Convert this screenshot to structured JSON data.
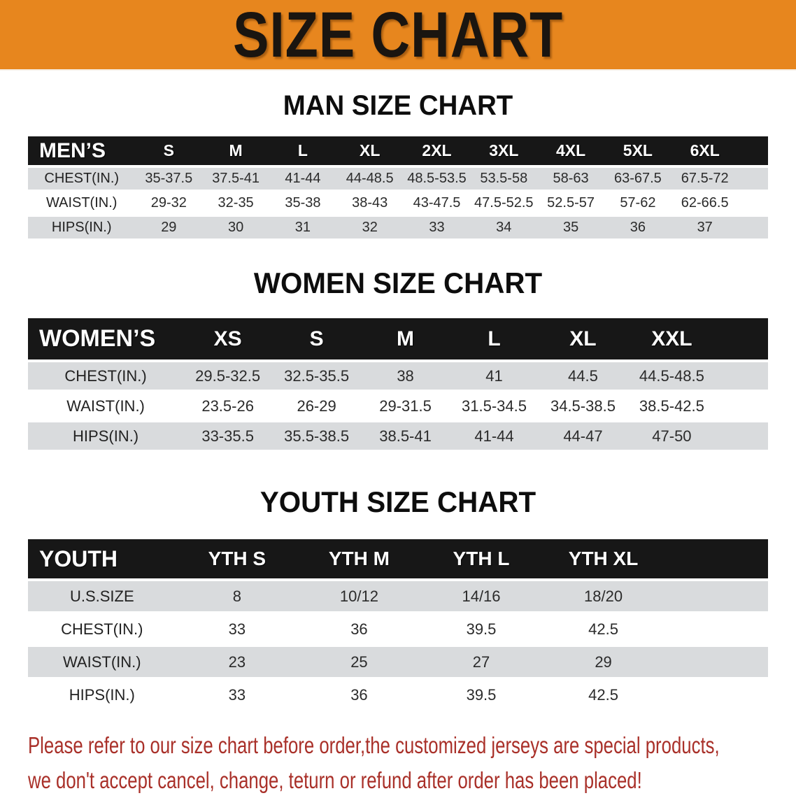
{
  "banner": {
    "title": "SIZE CHART"
  },
  "sections": [
    {
      "heading": "MAN SIZE CHART",
      "table": {
        "header_label": "MEN’S",
        "columns": [
          "S",
          "M",
          "L",
          "XL",
          "2XL",
          "3XL",
          "4XL",
          "5XL",
          "6XL"
        ],
        "rows": [
          {
            "label": "CHEST(IN.)",
            "values": [
              "35-37.5",
              "37.5-41",
              "41-44",
              "44-48.5",
              "48.5-53.5",
              "53.5-58",
              "58-63",
              "63-67.5",
              "67.5-72"
            ]
          },
          {
            "label": "WAIST(IN.)",
            "values": [
              "29-32",
              "32-35",
              "35-38",
              "38-43",
              "43-47.5",
              "47.5-52.5",
              "52.5-57",
              "57-62",
              "62-66.5"
            ]
          },
          {
            "label": "HIPS(IN.)",
            "values": [
              "29",
              "30",
              "31",
              "32",
              "33",
              "34",
              "35",
              "36",
              "37"
            ]
          }
        ]
      }
    },
    {
      "heading": "WOMEN SIZE CHART",
      "table": {
        "header_label": "WOMEN’S",
        "columns": [
          "XS",
          "S",
          "M",
          "L",
          "XL",
          "XXL"
        ],
        "rows": [
          {
            "label": "CHEST(IN.)",
            "values": [
              "29.5-32.5",
              "32.5-35.5",
              "38",
              "41",
              "44.5",
              "44.5-48.5"
            ]
          },
          {
            "label": "WAIST(IN.)",
            "values": [
              "23.5-26",
              "26-29",
              "29-31.5",
              "31.5-34.5",
              "34.5-38.5",
              "38.5-42.5"
            ]
          },
          {
            "label": "HIPS(IN.)",
            "values": [
              "33-35.5",
              "35.5-38.5",
              "38.5-41",
              "41-44",
              "44-47",
              "47-50"
            ]
          }
        ]
      }
    },
    {
      "heading": "YOUTH SIZE CHART",
      "table": {
        "header_label": "YOUTH",
        "columns": [
          "YTH S",
          "YTH M",
          "YTH L",
          "YTH XL"
        ],
        "rows": [
          {
            "label": "U.S.SIZE",
            "values": [
              "8",
              "10/12",
              "14/16",
              "18/20"
            ]
          },
          {
            "label": "CHEST(IN.)",
            "values": [
              "33",
              "36",
              "39.5",
              "42.5"
            ]
          },
          {
            "label": "WAIST(IN.)",
            "values": [
              "23",
              "25",
              "27",
              "29"
            ]
          },
          {
            "label": "HIPS(IN.)",
            "values": [
              "33",
              "36",
              "39.5",
              "42.5"
            ]
          }
        ]
      }
    }
  ],
  "disclaimer": {
    "lines": [
      "Please refer to our size chart before order,the customized jerseys are special products,",
      "we don't accept cancel, change, teturn or refund after order has been placed!"
    ]
  },
  "colors": {
    "banner_bg": "#e7861e",
    "banner_text": "#1a1510",
    "table_header_bg": "#171717",
    "table_header_text": "#ffffff",
    "row_alt_bg": "#d9dbdd",
    "disclaimer_text": "#a93029"
  }
}
